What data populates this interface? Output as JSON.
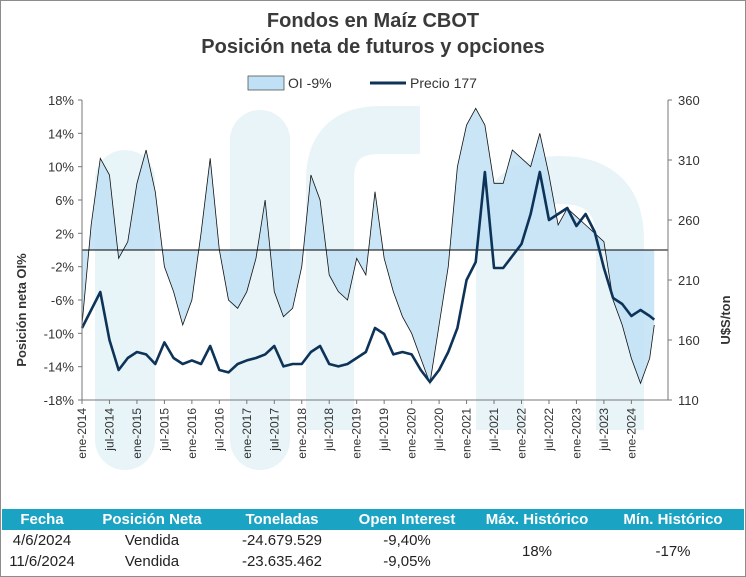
{
  "title": "Fondos en Maíz CBOT",
  "subtitle": "Posición neta de futuros y opciones",
  "chart_data": {
    "type": "area",
    "legend_position": "top",
    "grid": false,
    "ylabel_left": "Posición neta OI%",
    "ylabel_right": "U$S/ton",
    "ylim_left": [
      -18,
      18
    ],
    "ylim_right": [
      110,
      360
    ],
    "yticks_left": [
      "18%",
      "14%",
      "10%",
      "6%",
      "2%",
      "-2%",
      "-6%",
      "-10%",
      "-14%",
      "-18%"
    ],
    "yticks_right": [
      "360",
      "310",
      "260",
      "210",
      "160",
      "110"
    ],
    "xlim": [
      "2014-01",
      "2024-09"
    ],
    "xticks": [
      "ene-2014",
      "jul-2014",
      "ene-2015",
      "jul-2015",
      "ene-2016",
      "jul-2016",
      "ene-2017",
      "jul-2017",
      "ene-2018",
      "jul-2018",
      "ene-2019",
      "jul-2019",
      "ene-2020",
      "jul-2020",
      "ene-2021",
      "jul-2021",
      "ene-2022",
      "jul-2022",
      "ene-2023",
      "jul-2023",
      "ene-2024"
    ],
    "series": [
      {
        "name": "OI -9%",
        "axis": "left",
        "color": "#bfe0f5",
        "x": [
          "2014-01",
          "2014-03",
          "2014-05",
          "2014-07",
          "2014-09",
          "2014-11",
          "2015-01",
          "2015-03",
          "2015-05",
          "2015-07",
          "2015-09",
          "2015-11",
          "2016-01",
          "2016-03",
          "2016-05",
          "2016-07",
          "2016-09",
          "2016-11",
          "2017-01",
          "2017-03",
          "2017-05",
          "2017-07",
          "2017-09",
          "2017-11",
          "2018-01",
          "2018-03",
          "2018-05",
          "2018-07",
          "2018-09",
          "2018-11",
          "2019-01",
          "2019-03",
          "2019-05",
          "2019-07",
          "2019-09",
          "2019-11",
          "2020-01",
          "2020-03",
          "2020-05",
          "2020-07",
          "2020-09",
          "2020-11",
          "2021-01",
          "2021-03",
          "2021-05",
          "2021-07",
          "2021-09",
          "2021-11",
          "2022-01",
          "2022-03",
          "2022-05",
          "2022-07",
          "2022-09",
          "2022-11",
          "2023-01",
          "2023-03",
          "2023-05",
          "2023-07",
          "2023-09",
          "2023-11",
          "2024-01",
          "2024-03",
          "2024-05",
          "2024-06"
        ],
        "values": [
          -9,
          3,
          11,
          9,
          -1,
          1,
          8,
          12,
          7,
          -2,
          -5,
          -9,
          -6,
          2,
          11,
          0,
          -6,
          -7,
          -5,
          -1,
          6,
          -5,
          -8,
          -7,
          -2,
          9,
          6,
          -3,
          -5,
          -6,
          -1,
          -3,
          7,
          -1,
          -5,
          -8,
          -10,
          -13,
          -16,
          -9,
          -2,
          10,
          15,
          17,
          15,
          8,
          8,
          12,
          11,
          10,
          14,
          9,
          3,
          5,
          4,
          3,
          2,
          1,
          -6,
          -9,
          -13,
          -16,
          -13,
          -9
        ]
      },
      {
        "name": "Precio 177",
        "axis": "right",
        "color": "#0d3358",
        "x": [
          "2014-01",
          "2014-03",
          "2014-05",
          "2014-07",
          "2014-09",
          "2014-11",
          "2015-01",
          "2015-03",
          "2015-05",
          "2015-07",
          "2015-09",
          "2015-11",
          "2016-01",
          "2016-03",
          "2016-05",
          "2016-07",
          "2016-09",
          "2016-11",
          "2017-01",
          "2017-03",
          "2017-05",
          "2017-07",
          "2017-09",
          "2017-11",
          "2018-01",
          "2018-03",
          "2018-05",
          "2018-07",
          "2018-09",
          "2018-11",
          "2019-01",
          "2019-03",
          "2019-05",
          "2019-07",
          "2019-09",
          "2019-11",
          "2020-01",
          "2020-03",
          "2020-05",
          "2020-07",
          "2020-09",
          "2020-11",
          "2021-01",
          "2021-03",
          "2021-05",
          "2021-07",
          "2021-09",
          "2021-11",
          "2022-01",
          "2022-03",
          "2022-05",
          "2022-07",
          "2022-09",
          "2022-11",
          "2023-01",
          "2023-03",
          "2023-05",
          "2023-07",
          "2023-09",
          "2023-11",
          "2024-01",
          "2024-03",
          "2024-05",
          "2024-06"
        ],
        "values": [
          170,
          185,
          200,
          160,
          135,
          145,
          150,
          148,
          140,
          158,
          145,
          140,
          143,
          140,
          155,
          135,
          133,
          140,
          143,
          145,
          148,
          155,
          138,
          140,
          140,
          150,
          155,
          140,
          138,
          140,
          145,
          150,
          170,
          165,
          148,
          150,
          148,
          135,
          125,
          135,
          150,
          170,
          210,
          225,
          300,
          220,
          220,
          230,
          240,
          265,
          300,
          260,
          265,
          270,
          255,
          265,
          250,
          220,
          195,
          190,
          180,
          185,
          180,
          177
        ]
      }
    ]
  },
  "table": {
    "headers": [
      "Fecha",
      "Posición Neta",
      "Toneladas",
      "Open Interest",
      "Máx. Histórico",
      "Mín. Histórico"
    ],
    "rows": [
      [
        "4/6/2024",
        "Vendida",
        "-24.679.529",
        "-9,40%"
      ],
      [
        "11/6/2024",
        "Vendida",
        "-23.635.462",
        "-9,05%"
      ]
    ],
    "max_historico": "18%",
    "min_historico": "-17%"
  }
}
